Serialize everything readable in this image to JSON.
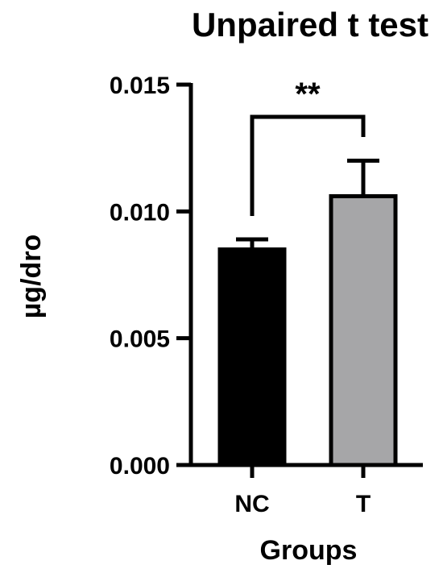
{
  "chart_data": {
    "type": "bar",
    "title": "Unpaired t test",
    "xlabel": "Groups",
    "ylabel": "µg/dro",
    "categories": [
      "NC",
      "T"
    ],
    "values": [
      0.0085,
      0.0106
    ],
    "error": [
      0.0004,
      0.0014
    ],
    "ylim": [
      0,
      0.015
    ],
    "yticks": [
      "0.000",
      "0.005",
      "0.010",
      "0.015"
    ],
    "grid": false,
    "legend": "none",
    "bar_colors": [
      "#000000",
      "#a6a6a8"
    ],
    "significance": {
      "pair": [
        "NC",
        "T"
      ],
      "label": "**"
    }
  }
}
